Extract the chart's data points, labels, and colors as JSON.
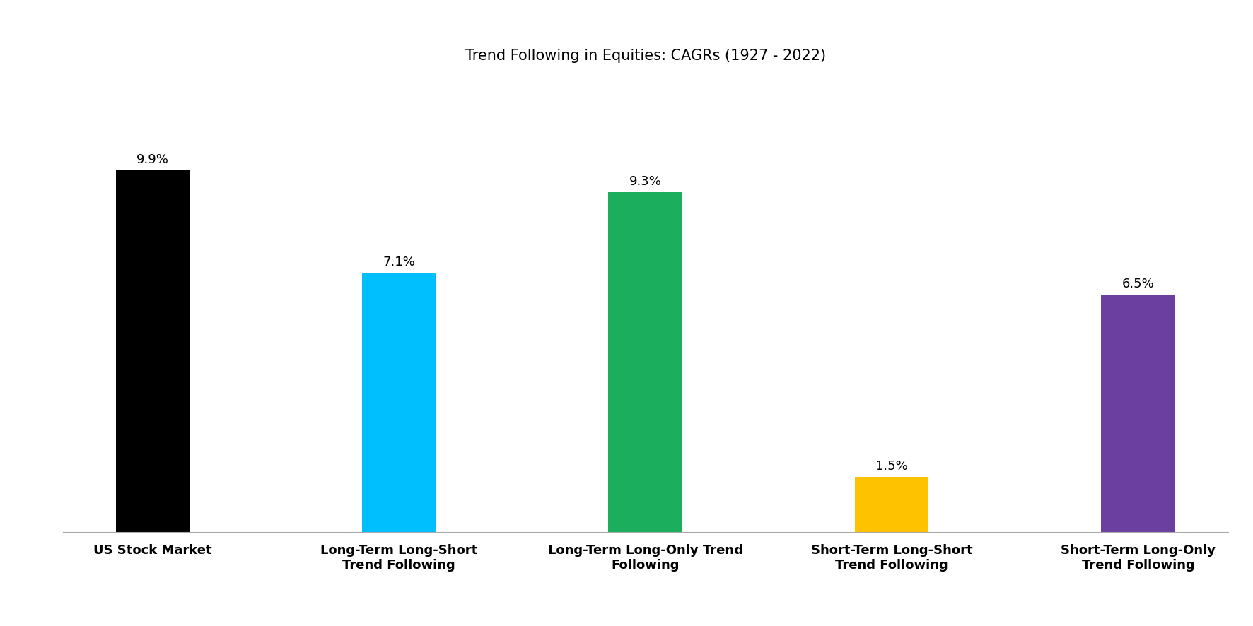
{
  "title": "Trend Following in Equities: CAGRs (1927 - 2022)",
  "categories": [
    "US Stock Market",
    "Long-Term Long-Short\nTrend Following",
    "Long-Term Long-Only Trend\nFollowing",
    "Short-Term Long-Short\nTrend Following",
    "Short-Term Long-Only\nTrend Following"
  ],
  "values": [
    9.9,
    7.1,
    9.3,
    1.5,
    6.5
  ],
  "labels": [
    "9.9%",
    "7.1%",
    "9.3%",
    "1.5%",
    "6.5%"
  ],
  "bar_colors": [
    "#000000",
    "#00BFFF",
    "#1BAF5D",
    "#FFC200",
    "#6B3FA0"
  ],
  "ylim": [
    0,
    12.5
  ],
  "background_color": "#ffffff",
  "title_fontsize": 15,
  "label_fontsize": 13,
  "tick_fontsize": 13,
  "bar_width": 0.3
}
